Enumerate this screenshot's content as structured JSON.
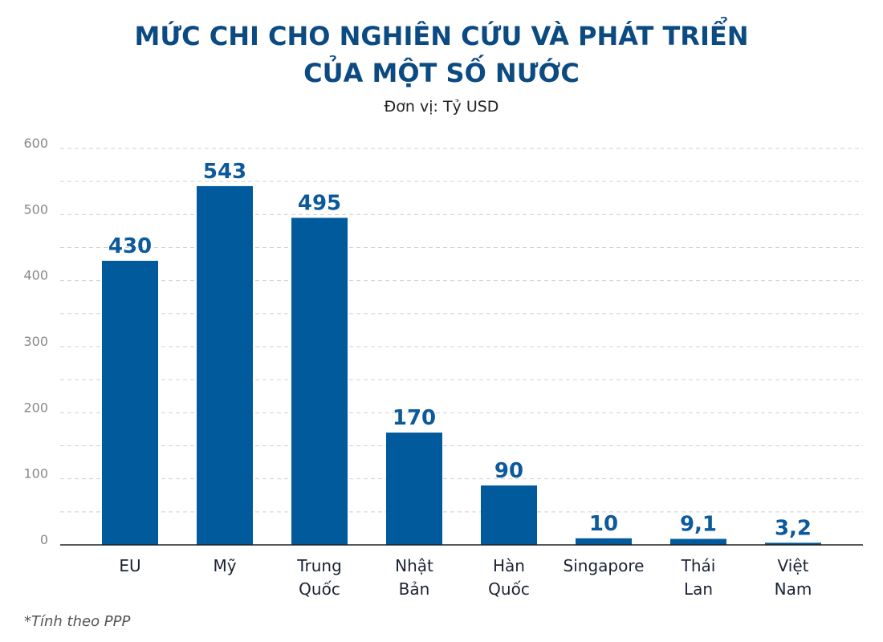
{
  "chart_data": {
    "type": "bar",
    "title": [
      "MỨC CHI CHO NGHIÊN CỨU VÀ PHÁT TRIỂN",
      "CỦA MỘT SỐ NƯỚC"
    ],
    "subtitle": "Đơn vị: Tỷ USD",
    "categories": [
      [
        "EU"
      ],
      [
        "Mỹ"
      ],
      [
        "Trung",
        "Quốc"
      ],
      [
        "Nhật",
        "Bản"
      ],
      [
        "Hàn",
        "Quốc"
      ],
      [
        "Singapore"
      ],
      [
        "Thái",
        "Lan"
      ],
      [
        "Việt",
        "Nam"
      ]
    ],
    "values": [
      430,
      543,
      495,
      170,
      90,
      10,
      9.1,
      3.2
    ],
    "data_labels": [
      "430",
      "543",
      "495",
      "170",
      "90",
      "10",
      "9,1",
      "3,2"
    ],
    "yticks": [
      0,
      100,
      200,
      300,
      400,
      500,
      600
    ],
    "ylim": [
      0,
      600
    ],
    "grid": "dashed horizontal every 50",
    "bar_color": "#005a9c",
    "label_color": "#0c5a9c",
    "xlabel": "",
    "ylabel": "",
    "footnote": "*Tính theo PPP"
  }
}
